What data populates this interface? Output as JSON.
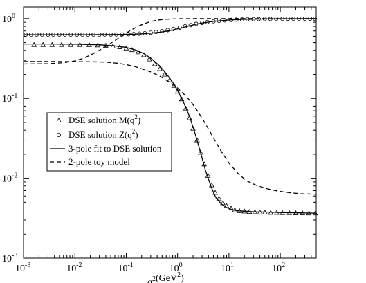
{
  "chart_data": {
    "type": "line",
    "xscale": "log",
    "yscale": "log",
    "xlim": [
      0.001,
      500
    ],
    "ylim": [
      0.001,
      1.4
    ],
    "grid": false,
    "legend_placement": "center-left",
    "xlabel": "q",
    "xlabel_exp": "2",
    "xlabel_unit": "(GeV",
    "xlabel_unit_exp": "2",
    "xlabel_unit_close": ")",
    "x_ticks": [
      {
        "value": 0.001,
        "base": "10",
        "exp": "-3"
      },
      {
        "value": 0.01,
        "base": "10",
        "exp": "-2"
      },
      {
        "value": 0.1,
        "base": "10",
        "exp": "-1"
      },
      {
        "value": 1,
        "base": "10",
        "exp": "0"
      },
      {
        "value": 10,
        "base": "10",
        "exp": "1"
      },
      {
        "value": 100,
        "base": "10",
        "exp": "2"
      }
    ],
    "y_ticks": [
      {
        "value": 0.001,
        "base": "10",
        "exp": "-3"
      },
      {
        "value": 0.01,
        "base": "10",
        "exp": "-2"
      },
      {
        "value": 0.1,
        "base": "10",
        "exp": "-1"
      },
      {
        "value": 1,
        "base": "10",
        "exp": "0"
      }
    ],
    "series": [
      {
        "name": "DSE solution  M(q",
        "name_exp": "2",
        "name_close": ")",
        "style": "markers",
        "marker": "triangle",
        "x": [
          0.0016,
          0.0024,
          0.0036,
          0.0055,
          0.0083,
          0.0125,
          0.019,
          0.028,
          0.04,
          0.055,
          0.075,
          0.1,
          0.13,
          0.17,
          0.22,
          0.28,
          0.36,
          0.45,
          0.56,
          0.7,
          0.85,
          1.0,
          1.2,
          1.45,
          1.7,
          2.0,
          2.4,
          2.8,
          3.3,
          3.9,
          4.6,
          5.4,
          6.4,
          7.6,
          9.0,
          11,
          13,
          16,
          20,
          25,
          32,
          40,
          50,
          65,
          85,
          110,
          150,
          200,
          270,
          360,
          480
        ],
        "y": [
          0.47,
          0.47,
          0.47,
          0.47,
          0.47,
          0.47,
          0.468,
          0.465,
          0.46,
          0.45,
          0.44,
          0.425,
          0.405,
          0.38,
          0.35,
          0.31,
          0.27,
          0.235,
          0.2,
          0.17,
          0.145,
          0.122,
          0.098,
          0.075,
          0.057,
          0.042,
          0.03,
          0.021,
          0.015,
          0.0108,
          0.0082,
          0.0066,
          0.0056,
          0.0049,
          0.0045,
          0.0042,
          0.004,
          0.0039,
          0.00385,
          0.0038,
          0.00378,
          0.00375,
          0.00373,
          0.0037,
          0.0037,
          0.00368,
          0.00368,
          0.00366,
          0.00366,
          0.00365,
          0.00365
        ]
      },
      {
        "name": "DSE solution Z(q",
        "name_exp": "2",
        "name_close": ")",
        "style": "markers",
        "marker": "circle",
        "x": [
          0.0011,
          0.0014,
          0.0018,
          0.0023,
          0.003,
          0.0038,
          0.005,
          0.0064,
          0.0083,
          0.011,
          0.014,
          0.018,
          0.023,
          0.03,
          0.038,
          0.05,
          0.064,
          0.083,
          0.11,
          0.14,
          0.18,
          0.23,
          0.3,
          0.38,
          0.5,
          0.64,
          0.83,
          1.1,
          1.4,
          1.8,
          2.3,
          3.0,
          3.8,
          5.0,
          6.4,
          8.3,
          11,
          14,
          18,
          23,
          30,
          38,
          50,
          64,
          83,
          110,
          140,
          180,
          230,
          300,
          380,
          470
        ],
        "y": [
          0.63,
          0.63,
          0.63,
          0.63,
          0.63,
          0.63,
          0.63,
          0.63,
          0.63,
          0.63,
          0.63,
          0.63,
          0.63,
          0.63,
          0.631,
          0.632,
          0.633,
          0.635,
          0.638,
          0.642,
          0.648,
          0.656,
          0.666,
          0.68,
          0.697,
          0.718,
          0.742,
          0.77,
          0.8,
          0.83,
          0.86,
          0.885,
          0.905,
          0.925,
          0.94,
          0.952,
          0.962,
          0.97,
          0.976,
          0.98,
          0.984,
          0.987,
          0.99,
          0.992,
          0.993,
          0.994,
          0.995,
          0.996,
          0.997,
          0.997,
          0.998,
          0.998
        ]
      },
      {
        "name": "3-pole fit to DSE solution",
        "style": "solid",
        "curves": [
          {
            "x": [
              0.001,
              0.003,
              0.01,
              0.03,
              0.06,
              0.1,
              0.15,
              0.22,
              0.3,
              0.45,
              0.6,
              0.8,
              1.0,
              1.3,
              1.7,
              2.2,
              2.8,
              3.5,
              4.5,
              5.5,
              7,
              9,
              12,
              16,
              22,
              30,
              45,
              70,
              100,
              160,
              250,
              350,
              500
            ],
            "y": [
              0.48,
              0.48,
              0.478,
              0.47,
              0.455,
              0.435,
              0.405,
              0.365,
              0.32,
              0.255,
              0.205,
              0.16,
              0.125,
              0.09,
              0.06,
              0.036,
              0.021,
              0.0125,
              0.0078,
              0.0058,
              0.0048,
              0.0043,
              0.004,
              0.0039,
              0.00385,
              0.0038,
              0.00378,
              0.00375,
              0.00372,
              0.0037,
              0.00368,
              0.00366,
              0.00365
            ]
          },
          {
            "x": [
              0.001,
              0.01,
              0.03,
              0.06,
              0.1,
              0.15,
              0.22,
              0.3,
              0.45,
              0.6,
              0.8,
              1.0,
              1.3,
              1.7,
              2.2,
              3.0,
              4.0,
              5.5,
              7.5,
              10,
              14,
              20,
              30,
              45,
              70,
              100,
              160,
              250,
              350,
              500
            ],
            "y": [
              0.63,
              0.63,
              0.631,
              0.633,
              0.636,
              0.64,
              0.648,
              0.658,
              0.676,
              0.695,
              0.72,
              0.745,
              0.775,
              0.81,
              0.845,
              0.88,
              0.905,
              0.93,
              0.947,
              0.96,
              0.97,
              0.978,
              0.984,
              0.988,
              0.992,
              0.994,
              0.996,
              0.997,
              0.998,
              0.998
            ]
          }
        ]
      },
      {
        "name": "2-pole toy model",
        "style": "dashed",
        "curves": [
          {
            "x": [
              0.001,
              0.003,
              0.006,
              0.01,
              0.015,
              0.022,
              0.03,
              0.045,
              0.06,
              0.08,
              0.1,
              0.13,
              0.17,
              0.22,
              0.3,
              0.4,
              0.55,
              0.8,
              1.2,
              2,
              3,
              5,
              10,
              20,
              50,
              100,
              200,
              500
            ],
            "y": [
              0.27,
              0.272,
              0.28,
              0.295,
              0.32,
              0.36,
              0.4,
              0.47,
              0.53,
              0.6,
              0.66,
              0.73,
              0.8,
              0.86,
              0.92,
              0.955,
              0.98,
              0.99,
              0.996,
              0.998,
              0.999,
              1.0,
              1.0,
              1.0,
              1.0,
              1.0,
              1.0,
              1.0
            ]
          },
          {
            "x": [
              0.001,
              0.003,
              0.01,
              0.02,
              0.04,
              0.07,
              0.1,
              0.15,
              0.2,
              0.3,
              0.45,
              0.6,
              0.8,
              1.0,
              1.3,
              1.8,
              2.5,
              3.5,
              5,
              7,
              10,
              15,
              22,
              35,
              55,
              90,
              150,
              250,
              500
            ],
            "y": [
              0.29,
              0.29,
              0.289,
              0.288,
              0.285,
              0.275,
              0.265,
              0.25,
              0.235,
              0.215,
              0.19,
              0.17,
              0.15,
              0.135,
              0.115,
              0.092,
              0.068,
              0.048,
              0.032,
              0.022,
              0.0155,
              0.0115,
              0.0093,
              0.0081,
              0.0074,
              0.0069,
              0.0066,
              0.0064,
              0.0063
            ]
          }
        ]
      }
    ]
  }
}
